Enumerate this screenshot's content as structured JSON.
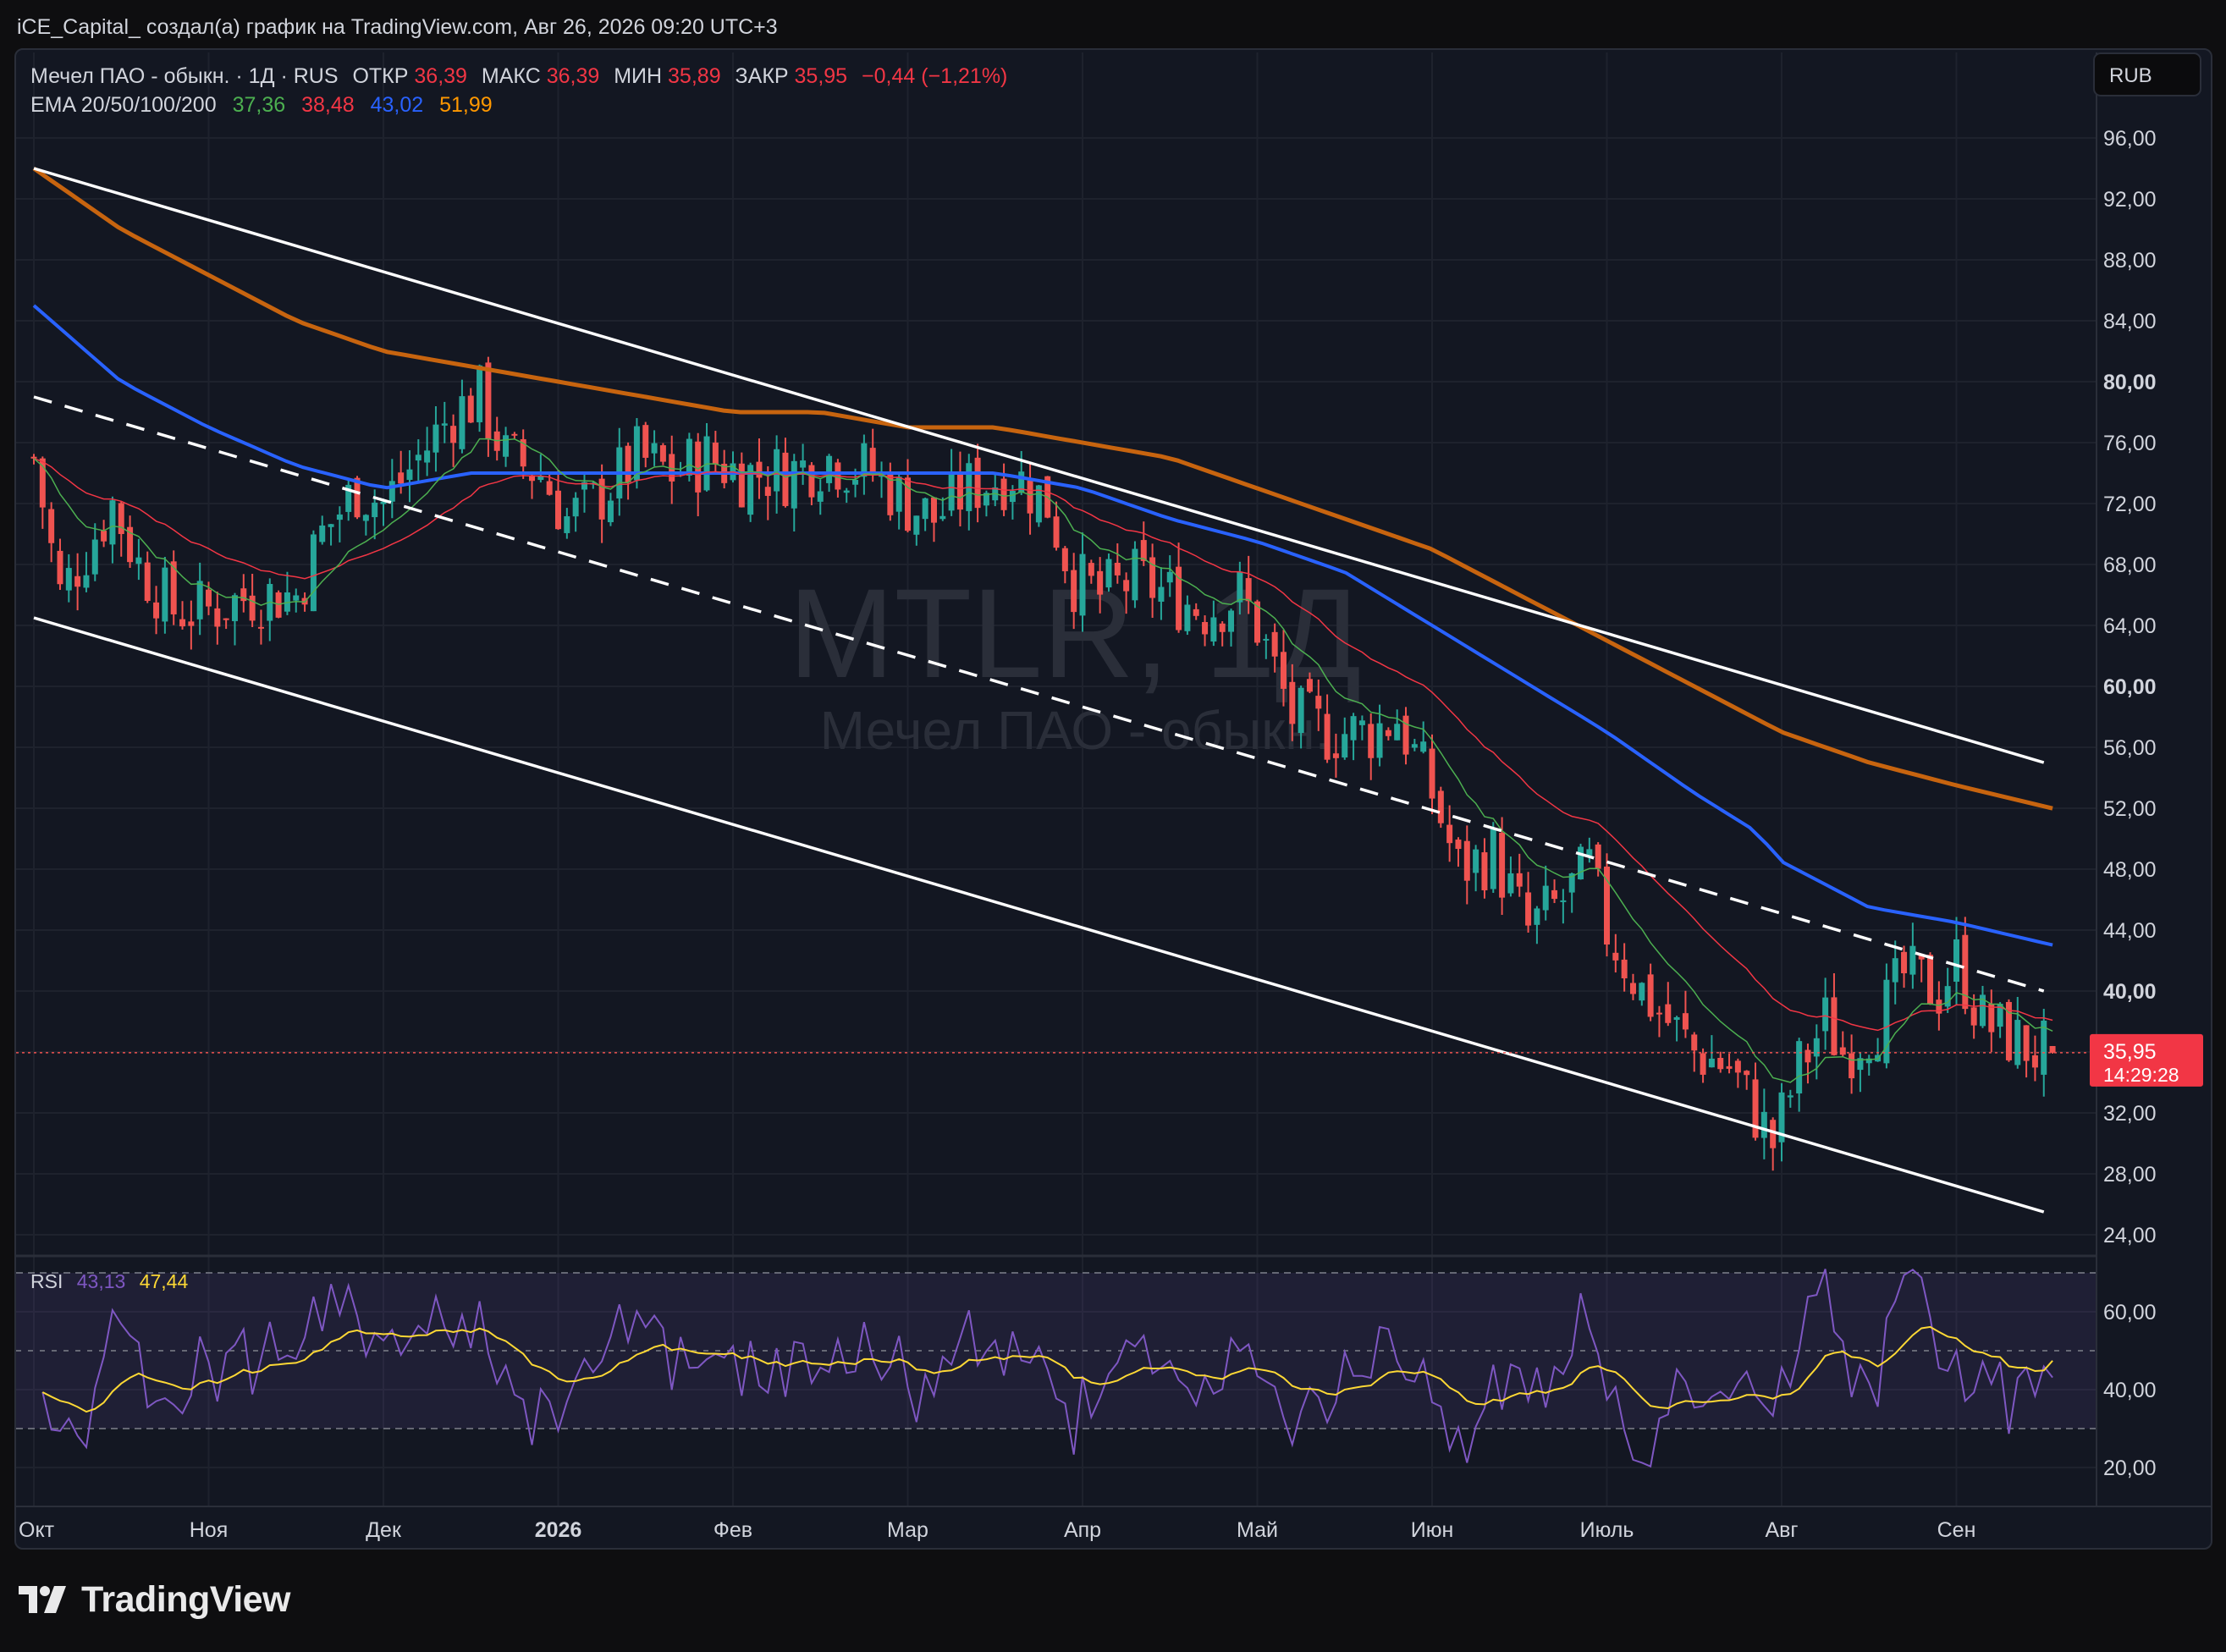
{
  "header": {
    "author_line": "iCE_Capital_ создал(а) график на TradingView.com, Авг 26, 2026 09:20 UTC+3"
  },
  "brand": {
    "name": "TradingView"
  },
  "currency_button": "RUB",
  "legend": {
    "symbol_info": "Мечел ПАО - обыкн. · 1Д · RUS",
    "open_label": "ОТКР",
    "open_value": "36,39",
    "high_label": "МАКС",
    "high_value": "36,39",
    "low_label": "МИН",
    "low_value": "35,89",
    "close_label": "ЗАКР",
    "close_value": "35,95",
    "change": "−0,44 (−1,21%)",
    "ema_label": "EMA 20/50/100/200",
    "ema_values": [
      "37,36",
      "38,48",
      "43,02",
      "51,99"
    ]
  },
  "watermark": {
    "ticker": "MTLR, 1Д",
    "name": "Мечел ПАО - обыкн."
  },
  "price_axis": {
    "labels": [
      "96,00",
      "92,00",
      "88,00",
      "84,00",
      "80,00",
      "76,00",
      "72,00",
      "68,00",
      "64,00",
      "60,00",
      "56,00",
      "52,00",
      "48,00",
      "44,00",
      "40,00",
      "36,00",
      "32,00",
      "28,00",
      "24,00"
    ],
    "bold_labels": [
      "80,00",
      "60,00",
      "40,00"
    ],
    "last_price_label": "35,95",
    "countdown": "14:29:28"
  },
  "rsi": {
    "label": "RSI",
    "value": "43,13",
    "ma_value": "47,44",
    "axis_labels": [
      "60,00",
      "40,00",
      "20,00"
    ],
    "bands": [
      70,
      50,
      30
    ]
  },
  "time_axis": {
    "labels": [
      "Окт",
      "Ноя",
      "Дек",
      "2026",
      "Фев",
      "Мар",
      "Апр",
      "Май",
      "Июн",
      "Июль",
      "Авг",
      "Сен"
    ],
    "bold_labels": [
      "2026"
    ]
  },
  "colors": {
    "background": "#131722",
    "up": "#26a69a",
    "down": "#ef5350",
    "ema20": "#4caf50",
    "ema50": "#f23645",
    "ema100": "#2962ff",
    "ema200": "#c7640f",
    "rsi": "#7e57c2",
    "rsi_ma": "#fdd835",
    "channel": "#ffffff"
  },
  "chart_data": {
    "type": "candlestick",
    "symbol": "MTLR",
    "interval": "1Д",
    "currency": "RUB",
    "ylim": [
      24,
      96
    ],
    "x_range": [
      "Окт",
      "Сен"
    ],
    "last_close": 35.95,
    "ohlc_last": {
      "open": 36.39,
      "high": 36.39,
      "low": 35.89,
      "close": 35.95,
      "change": -0.44,
      "change_pct": -1.21
    },
    "close_path": [
      {
        "m": 0.0,
        "c": 75
      },
      {
        "m": 0.15,
        "c": 66
      },
      {
        "m": 0.45,
        "c": 72
      },
      {
        "m": 0.6,
        "c": 68
      },
      {
        "m": 0.8,
        "c": 65
      },
      {
        "m": 1.0,
        "c": 65
      },
      {
        "m": 1.25,
        "c": 66
      },
      {
        "m": 1.5,
        "c": 66
      },
      {
        "m": 1.65,
        "c": 70
      },
      {
        "m": 1.85,
        "c": 73
      },
      {
        "m": 2.0,
        "c": 72
      },
      {
        "m": 2.2,
        "c": 75
      },
      {
        "m": 2.4,
        "c": 78
      },
      {
        "m": 2.55,
        "c": 79
      },
      {
        "m": 2.7,
        "c": 75
      },
      {
        "m": 2.9,
        "c": 74
      },
      {
        "m": 3.05,
        "c": 71
      },
      {
        "m": 3.2,
        "c": 72
      },
      {
        "m": 3.45,
        "c": 75
      },
      {
        "m": 3.65,
        "c": 74
      },
      {
        "m": 3.85,
        "c": 75
      },
      {
        "m": 4.05,
        "c": 74
      },
      {
        "m": 4.3,
        "c": 74
      },
      {
        "m": 4.55,
        "c": 75
      },
      {
        "m": 4.8,
        "c": 74
      },
      {
        "m": 5.0,
        "c": 72
      },
      {
        "m": 5.15,
        "c": 71
      },
      {
        "m": 5.35,
        "c": 73
      },
      {
        "m": 5.6,
        "c": 74
      },
      {
        "m": 5.8,
        "c": 72
      },
      {
        "m": 5.95,
        "c": 67
      },
      {
        "m": 6.1,
        "c": 66
      },
      {
        "m": 6.3,
        "c": 67
      },
      {
        "m": 6.5,
        "c": 66
      },
      {
        "m": 6.7,
        "c": 65
      },
      {
        "m": 6.9,
        "c": 66
      },
      {
        "m": 7.0,
        "c": 64
      },
      {
        "m": 7.2,
        "c": 58
      },
      {
        "m": 7.4,
        "c": 57
      },
      {
        "m": 7.65,
        "c": 57
      },
      {
        "m": 7.8,
        "c": 58
      },
      {
        "m": 8.0,
        "c": 53
      },
      {
        "m": 8.15,
        "c": 48
      },
      {
        "m": 8.35,
        "c": 49
      },
      {
        "m": 8.55,
        "c": 44
      },
      {
        "m": 8.75,
        "c": 46
      },
      {
        "m": 8.9,
        "c": 48
      },
      {
        "m": 9.0,
        "c": 44
      },
      {
        "m": 9.2,
        "c": 40
      },
      {
        "m": 9.35,
        "c": 38
      },
      {
        "m": 9.5,
        "c": 36
      },
      {
        "m": 9.7,
        "c": 35
      },
      {
        "m": 9.85,
        "c": 32
      },
      {
        "m": 9.95,
        "c": 30
      },
      {
        "m": 10.1,
        "c": 35
      },
      {
        "m": 10.25,
        "c": 38
      },
      {
        "m": 10.35,
        "c": 36
      },
      {
        "m": 10.55,
        "c": 38
      },
      {
        "m": 10.7,
        "c": 41
      },
      {
        "m": 10.9,
        "c": 40
      },
      {
        "m": 11.0,
        "c": 42
      },
      {
        "m": 11.15,
        "c": 38
      },
      {
        "m": 11.3,
        "c": 37
      },
      {
        "m": 11.45,
        "c": 36
      },
      {
        "m": 11.55,
        "c": 35.95
      }
    ],
    "ema": [
      {
        "name": "EMA 20",
        "last": 37.36
      },
      {
        "name": "EMA 50",
        "last": 38.48
      },
      {
        "name": "EMA 100",
        "last": 43.02
      },
      {
        "name": "EMA 200",
        "last": 51.99
      }
    ],
    "ema200_path": [
      {
        "m": 0.0,
        "c": 94
      },
      {
        "m": 0.5,
        "c": 90
      },
      {
        "m": 1.0,
        "c": 87
      },
      {
        "m": 1.5,
        "c": 84
      },
      {
        "m": 2.0,
        "c": 82
      },
      {
        "m": 2.5,
        "c": 81
      },
      {
        "m": 3.0,
        "c": 80
      },
      {
        "m": 3.5,
        "c": 79
      },
      {
        "m": 4.0,
        "c": 78
      },
      {
        "m": 4.5,
        "c": 78
      },
      {
        "m": 5.0,
        "c": 77
      },
      {
        "m": 5.5,
        "c": 77
      },
      {
        "m": 6.0,
        "c": 76
      },
      {
        "m": 6.5,
        "c": 75
      },
      {
        "m": 7.0,
        "c": 73
      },
      {
        "m": 7.5,
        "c": 71
      },
      {
        "m": 8.0,
        "c": 69
      },
      {
        "m": 8.5,
        "c": 66
      },
      {
        "m": 9.0,
        "c": 63
      },
      {
        "m": 9.5,
        "c": 60
      },
      {
        "m": 10.0,
        "c": 57
      },
      {
        "m": 10.5,
        "c": 55
      },
      {
        "m": 11.0,
        "c": 53.5
      },
      {
        "m": 11.55,
        "c": 51.99
      }
    ],
    "ema100_path": [
      {
        "m": 0.0,
        "c": 85
      },
      {
        "m": 0.5,
        "c": 80
      },
      {
        "m": 1.0,
        "c": 77
      },
      {
        "m": 1.5,
        "c": 74.5
      },
      {
        "m": 2.0,
        "c": 73
      },
      {
        "m": 2.5,
        "c": 74
      },
      {
        "m": 3.0,
        "c": 74
      },
      {
        "m": 3.5,
        "c": 74
      },
      {
        "m": 4.0,
        "c": 74
      },
      {
        "m": 4.5,
        "c": 74
      },
      {
        "m": 5.0,
        "c": 74
      },
      {
        "m": 5.5,
        "c": 74
      },
      {
        "m": 6.0,
        "c": 73
      },
      {
        "m": 6.5,
        "c": 71
      },
      {
        "m": 7.0,
        "c": 69.5
      },
      {
        "m": 7.5,
        "c": 67.5
      },
      {
        "m": 8.0,
        "c": 64
      },
      {
        "m": 8.5,
        "c": 60.5
      },
      {
        "m": 9.0,
        "c": 57
      },
      {
        "m": 9.5,
        "c": 53
      },
      {
        "m": 9.85,
        "c": 50.5
      },
      {
        "m": 10.0,
        "c": 48.5
      },
      {
        "m": 10.25,
        "c": 47
      },
      {
        "m": 10.5,
        "c": 45.5
      },
      {
        "m": 11.0,
        "c": 44.5
      },
      {
        "m": 11.55,
        "c": 43.02
      }
    ],
    "channel_upper": [
      {
        "m": 0.0,
        "c": 94
      },
      {
        "m": 11.5,
        "c": 55
      }
    ],
    "channel_mid": [
      {
        "m": 0.0,
        "c": 79
      },
      {
        "m": 11.5,
        "c": 40
      }
    ],
    "channel_lower": [
      {
        "m": 0.0,
        "c": 64.5
      },
      {
        "m": 11.5,
        "c": 25.5
      }
    ],
    "rsi_last": 43.13,
    "rsi_ma_last": 47.44
  }
}
